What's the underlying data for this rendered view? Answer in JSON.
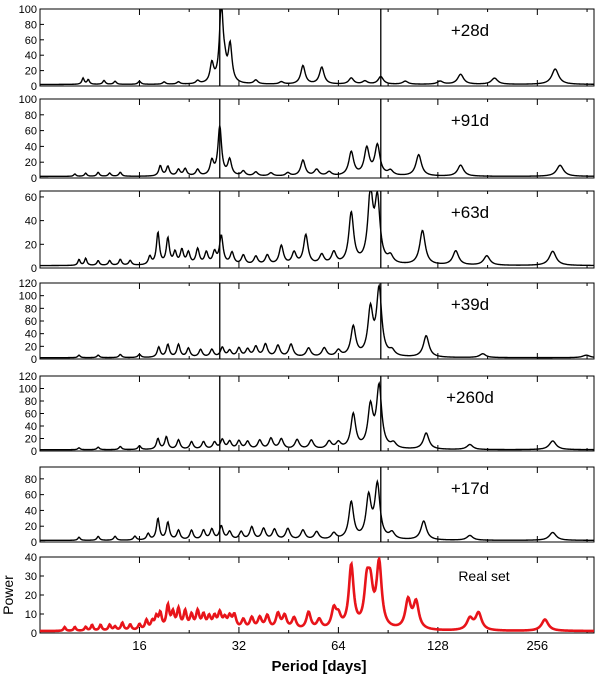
{
  "chart_data": [
    {
      "type": "line",
      "label": "+28d",
      "color": "#000000",
      "ylim": [
        0,
        100
      ],
      "yticks": [
        0,
        20,
        40,
        60,
        80,
        100
      ],
      "baseline": 2,
      "peaks": [
        [
          10.8,
          8
        ],
        [
          11.2,
          6
        ],
        [
          12.5,
          5
        ],
        [
          13.5,
          4
        ],
        [
          16,
          4
        ],
        [
          19,
          3
        ],
        [
          21,
          3
        ],
        [
          24,
          4
        ],
        [
          26.5,
          25
        ],
        [
          28.3,
          100
        ],
        [
          29,
          16
        ],
        [
          30.1,
          48
        ],
        [
          36,
          5
        ],
        [
          43,
          3
        ],
        [
          50,
          24
        ],
        [
          57,
          22
        ],
        [
          70,
          8
        ],
        [
          77,
          4
        ],
        [
          86,
          10
        ],
        [
          102,
          4
        ],
        [
          130,
          4
        ],
        [
          150,
          13
        ],
        [
          190,
          8
        ],
        [
          290,
          20
        ]
      ],
      "vlines": [
        28.0,
        86.0
      ]
    },
    {
      "type": "line",
      "label": "+91d",
      "color": "#000000",
      "ylim": [
        0,
        100
      ],
      "yticks": [
        0,
        20,
        40,
        60,
        80,
        100
      ],
      "baseline": 2,
      "peaks": [
        [
          10.2,
          3
        ],
        [
          11,
          4
        ],
        [
          12,
          5
        ],
        [
          13,
          4
        ],
        [
          14,
          5
        ],
        [
          18.5,
          13
        ],
        [
          19.5,
          12
        ],
        [
          21,
          8
        ],
        [
          22,
          9
        ],
        [
          24,
          8
        ],
        [
          26.5,
          18
        ],
        [
          28,
          62
        ],
        [
          30,
          20
        ],
        [
          33,
          6
        ],
        [
          36,
          5
        ],
        [
          40,
          4
        ],
        [
          45,
          4
        ],
        [
          50,
          20
        ],
        [
          55,
          8
        ],
        [
          60,
          5
        ],
        [
          70,
          30
        ],
        [
          78,
          34
        ],
        [
          84,
          38
        ],
        [
          92,
          6
        ],
        [
          112,
          27
        ],
        [
          150,
          14
        ],
        [
          300,
          14
        ]
      ],
      "vlines": [
        28.0,
        86.0
      ]
    },
    {
      "type": "line",
      "label": "+63d",
      "color": "#000000",
      "ylim": [
        0,
        65
      ],
      "yticks": [
        0,
        20,
        40,
        60
      ],
      "baseline": 2,
      "peaks": [
        [
          10.5,
          5
        ],
        [
          11,
          6
        ],
        [
          12,
          4
        ],
        [
          13,
          4
        ],
        [
          14,
          5
        ],
        [
          15,
          4
        ],
        [
          17.2,
          7
        ],
        [
          18.2,
          27
        ],
        [
          19.5,
          22
        ],
        [
          20.5,
          10
        ],
        [
          21.5,
          12
        ],
        [
          22.5,
          10
        ],
        [
          24,
          13
        ],
        [
          25.5,
          10
        ],
        [
          27,
          10
        ],
        [
          28.3,
          24
        ],
        [
          30.5,
          10
        ],
        [
          33,
          8
        ],
        [
          36,
          7
        ],
        [
          39,
          8
        ],
        [
          43,
          16
        ],
        [
          47,
          10
        ],
        [
          51,
          25
        ],
        [
          57,
          8
        ],
        [
          62,
          10
        ],
        [
          70,
          43
        ],
        [
          80,
          58
        ],
        [
          84,
          52
        ],
        [
          92,
          6
        ],
        [
          115,
          29
        ],
        [
          145,
          12
        ],
        [
          180,
          8
        ],
        [
          285,
          12
        ]
      ],
      "vlines": [
        28.0,
        86.0
      ]
    },
    {
      "type": "line",
      "label": "+39d",
      "color": "#000000",
      "ylim": [
        0,
        120
      ],
      "yticks": [
        0,
        20,
        40,
        60,
        80,
        100,
        120
      ],
      "baseline": 2,
      "peaks": [
        [
          10.5,
          4
        ],
        [
          12,
          4
        ],
        [
          14,
          5
        ],
        [
          16,
          5
        ],
        [
          18.3,
          16
        ],
        [
          19.5,
          20
        ],
        [
          21,
          20
        ],
        [
          22.5,
          14
        ],
        [
          24.5,
          12
        ],
        [
          26.5,
          12
        ],
        [
          28.5,
          15
        ],
        [
          30,
          10
        ],
        [
          32,
          14
        ],
        [
          34,
          12
        ],
        [
          36,
          16
        ],
        [
          38.5,
          20
        ],
        [
          42,
          18
        ],
        [
          46,
          20
        ],
        [
          52,
          14
        ],
        [
          58,
          14
        ],
        [
          64,
          10
        ],
        [
          71,
          47
        ],
        [
          80,
          72
        ],
        [
          85,
          105
        ],
        [
          93,
          8
        ],
        [
          118,
          34
        ],
        [
          175,
          6
        ],
        [
          360,
          4
        ]
      ],
      "vlines": [
        28.0,
        86.0
      ]
    },
    {
      "type": "line",
      "label": "+260d",
      "color": "#000000",
      "ylim": [
        0,
        120
      ],
      "yticks": [
        0,
        20,
        40,
        60,
        80,
        100,
        120
      ],
      "baseline": 2,
      "peaks": [
        [
          10.5,
          3
        ],
        [
          12,
          4
        ],
        [
          14,
          5
        ],
        [
          16,
          6
        ],
        [
          18.2,
          17
        ],
        [
          19.3,
          20
        ],
        [
          21,
          15
        ],
        [
          23,
          12
        ],
        [
          25,
          12
        ],
        [
          27,
          11
        ],
        [
          28.5,
          15
        ],
        [
          30,
          12
        ],
        [
          32,
          13
        ],
        [
          34,
          12
        ],
        [
          37,
          14
        ],
        [
          40,
          17
        ],
        [
          43,
          16
        ],
        [
          48,
          15
        ],
        [
          53,
          14
        ],
        [
          60,
          12
        ],
        [
          64,
          10
        ],
        [
          71,
          55
        ],
        [
          80,
          65
        ],
        [
          85,
          98
        ],
        [
          94,
          8
        ],
        [
          118,
          26
        ],
        [
          160,
          8
        ],
        [
          285,
          14
        ]
      ],
      "vlines": [
        28.0,
        86.0
      ]
    },
    {
      "type": "line",
      "label": "+17d",
      "color": "#000000",
      "ylim": [
        0,
        95
      ],
      "yticks": [
        0,
        20,
        40,
        60,
        80
      ],
      "baseline": 2,
      "peaks": [
        [
          10.5,
          4
        ],
        [
          12,
          5
        ],
        [
          13.5,
          5
        ],
        [
          15.5,
          5
        ],
        [
          17,
          8
        ],
        [
          18.2,
          27
        ],
        [
          19.5,
          22
        ],
        [
          21,
          12
        ],
        [
          23,
          12
        ],
        [
          25,
          12
        ],
        [
          26.5,
          13
        ],
        [
          28.3,
          17
        ],
        [
          30,
          10
        ],
        [
          32.5,
          10
        ],
        [
          35,
          16
        ],
        [
          38,
          14
        ],
        [
          41,
          13
        ],
        [
          45,
          14
        ],
        [
          50,
          12
        ],
        [
          55,
          10
        ],
        [
          62,
          8
        ],
        [
          70,
          47
        ],
        [
          79,
          52
        ],
        [
          84,
          68
        ],
        [
          93,
          8
        ],
        [
          116,
          24
        ],
        [
          160,
          6
        ],
        [
          285,
          10
        ]
      ],
      "vlines": [
        28.0,
        86.0
      ]
    },
    {
      "type": "line",
      "label": "Real set",
      "color": "#e8141a",
      "ylabel": "Power",
      "ylim": [
        0,
        40
      ],
      "yticks": [
        0,
        10,
        20,
        30,
        40
      ],
      "baseline": 1,
      "peaks": [
        [
          9.5,
          2
        ],
        [
          10.2,
          2
        ],
        [
          11,
          2
        ],
        [
          11.5,
          3
        ],
        [
          12.2,
          3
        ],
        [
          13,
          3
        ],
        [
          13.5,
          2
        ],
        [
          14.2,
          4
        ],
        [
          15,
          3
        ],
        [
          16,
          3
        ],
        [
          16.8,
          5
        ],
        [
          17.5,
          4
        ],
        [
          18,
          6
        ],
        [
          18.5,
          8
        ],
        [
          19.5,
          12
        ],
        [
          20.2,
          8
        ],
        [
          21,
          10
        ],
        [
          22,
          9
        ],
        [
          23,
          7
        ],
        [
          24,
          9
        ],
        [
          25,
          7
        ],
        [
          26,
          6
        ],
        [
          27,
          6
        ],
        [
          28,
          8
        ],
        [
          29,
          5
        ],
        [
          30,
          6
        ],
        [
          31,
          7
        ],
        [
          33,
          5
        ],
        [
          35,
          6
        ],
        [
          37,
          6
        ],
        [
          39,
          7
        ],
        [
          42,
          8
        ],
        [
          44,
          7
        ],
        [
          47,
          6
        ],
        [
          52,
          9
        ],
        [
          56,
          5
        ],
        [
          62,
          10
        ],
        [
          64,
          6
        ],
        [
          70,
          33
        ],
        [
          78,
          21
        ],
        [
          80,
          19
        ],
        [
          85,
          34
        ],
        [
          104,
          15
        ],
        [
          110,
          14
        ],
        [
          160,
          6
        ],
        [
          170,
          9
        ],
        [
          270,
          6
        ]
      ],
      "vlines": []
    }
  ],
  "axes": {
    "xlabel": "Period [days]",
    "xlim": [
      8,
      380
    ],
    "xticks": [
      16,
      32,
      64,
      128,
      256
    ],
    "xtick_labels": [
      "16",
      "32",
      "64",
      "128",
      "256"
    ],
    "xscale": "log2"
  }
}
